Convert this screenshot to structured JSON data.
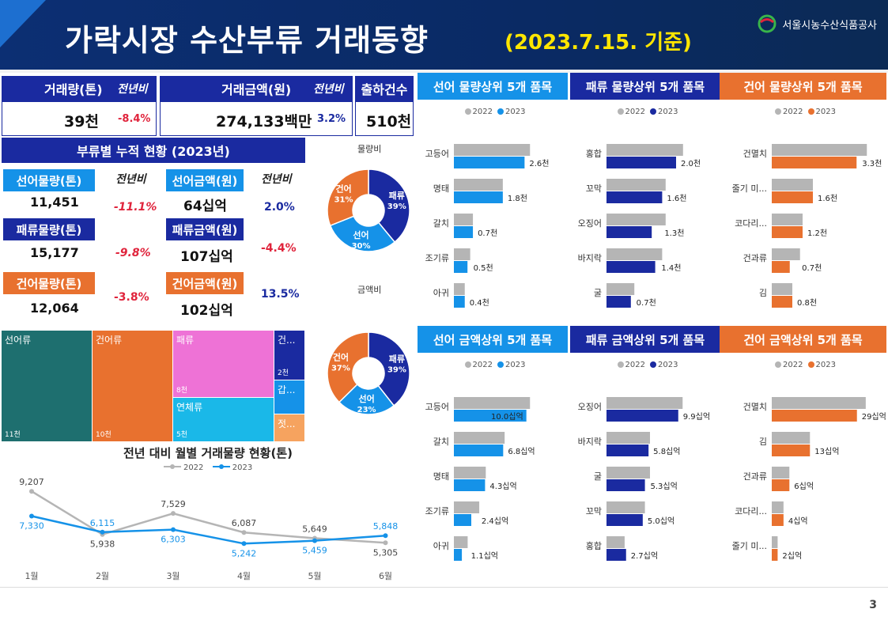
{
  "header": {
    "title": "가락시장 수산부류 거래동향",
    "date": "(2023.7.15. 기준)",
    "org": "서울시농수산식품공사"
  },
  "kpi": {
    "vol_label": "거래량(톤)",
    "yoy_label": "전년비",
    "vol_value": "39천",
    "vol_pct": "-8.4%",
    "amt_label": "거래금액(원)",
    "amt_yoy_label": "전년비",
    "amt_value": "274,133백만",
    "amt_pct": "3.2%",
    "cnt_label": "출하건수",
    "cnt_value": "510천"
  },
  "cum": {
    "title": "부류별 누적 현황 (2023년)",
    "yoy": "전년비",
    "rows": [
      {
        "vlabel": "선어물량(톤)",
        "vval": "11,451",
        "vpct": "-11.1%",
        "alabel": "선어금액(원)",
        "aval": "64십억",
        "apct": "2.0%"
      },
      {
        "vlabel": "패류물량(톤)",
        "vval": "15,177",
        "vpct": "-9.8%",
        "alabel": "패류금액(원)",
        "aval": "107십억",
        "apct": "-4.4%"
      },
      {
        "vlabel": "건어물량(톤)",
        "vval": "12,064",
        "vpct": "-3.8%",
        "alabel": "건어금액(원)",
        "aval": "102십억",
        "apct": "13.5%"
      }
    ]
  },
  "donut1": {
    "title": "물량비",
    "slices": [
      {
        "name": "패류",
        "pct": 39,
        "color": "#1a2aa0"
      },
      {
        "name": "선어",
        "pct": 30,
        "color": "#1592e8"
      },
      {
        "name": "건어",
        "pct": 31,
        "color": "#e8712f"
      }
    ]
  },
  "donut2": {
    "title": "금액비",
    "slices": [
      {
        "name": "패류",
        "pct": 39,
        "color": "#1a2aa0"
      },
      {
        "name": "선어",
        "pct": 23,
        "color": "#1592e8"
      },
      {
        "name": "건어",
        "pct": 37,
        "color": "#e8712f"
      }
    ]
  },
  "treemap": [
    {
      "name": "선어류",
      "value": "11천"
    },
    {
      "name": "건어류",
      "value": "10천"
    },
    {
      "name": "패류",
      "value": "8천"
    },
    {
      "name": "연체류",
      "value": "5천"
    },
    {
      "name": "건...",
      "value": "2천"
    },
    {
      "name": "갑...",
      "value": ""
    },
    {
      "name": "젓...",
      "value": ""
    }
  ],
  "chart_data": [
    {
      "type": "line",
      "title": "전년 대비 월별 거래물량 현황(톤)",
      "categories": [
        "1월",
        "2월",
        "3월",
        "4월",
        "5월",
        "6월"
      ],
      "series": [
        {
          "name": "2022",
          "color": "#b5b5b5",
          "values": [
            9207,
            5938,
            7529,
            6087,
            5649,
            5305
          ]
        },
        {
          "name": "2023",
          "color": "#1592e8",
          "values": [
            7330,
            6115,
            6303,
            5242,
            5459,
            5848
          ]
        }
      ],
      "labels_2022": [
        "9,207",
        "5,938",
        "7,529",
        "6,087",
        "5,649",
        "5,305"
      ],
      "labels_2023": [
        "7,330",
        "6,115",
        "6,303",
        "5,242",
        "5,459",
        "5,848"
      ]
    },
    {
      "type": "bar",
      "title": "선어 물량상위 5개 품목",
      "categories": [
        "고등어",
        "명태",
        "갈치",
        "조기류",
        "아귀"
      ],
      "series": [
        {
          "name": "2022",
          "values": [
            2.8,
            1.8,
            0.7,
            0.6,
            0.4
          ]
        },
        {
          "name": "2023",
          "values": [
            2.6,
            1.8,
            0.7,
            0.5,
            0.4
          ]
        }
      ],
      "labels": [
        "2.6천",
        "1.8천",
        "0.7천",
        "0.5천",
        "0.4천"
      ],
      "color": "#1592e8",
      "max": 3.2
    },
    {
      "type": "bar",
      "title": "패류 물량상위 5개 품목",
      "categories": [
        "홍합",
        "꼬막",
        "오징어",
        "바지락",
        "굴"
      ],
      "series": [
        {
          "name": "2022",
          "values": [
            2.2,
            1.7,
            1.7,
            1.6,
            0.8
          ]
        },
        {
          "name": "2023",
          "values": [
            2.0,
            1.6,
            1.3,
            1.4,
            0.7
          ]
        }
      ],
      "labels": [
        "2.0천",
        "1.6천",
        "1.3천",
        "1.4천",
        "0.7천"
      ],
      "color": "#1a2aa0",
      "max": 2.5
    },
    {
      "type": "bar",
      "title": "건어 물량상위 5개 품목",
      "categories": [
        "건멸치",
        "줄기 미...",
        "코다리...",
        "건과류",
        "김"
      ],
      "series": [
        {
          "name": "2022",
          "values": [
            3.7,
            1.6,
            1.2,
            1.1,
            0.8
          ]
        },
        {
          "name": "2023",
          "values": [
            3.3,
            1.6,
            1.2,
            0.7,
            0.8
          ]
        }
      ],
      "labels": [
        "3.3천",
        "1.6천",
        "1.2천",
        "0.7천",
        "0.8천"
      ],
      "color": "#e8712f",
      "max": 4.0
    },
    {
      "type": "bar",
      "title": "선어 금액상위 5개 품목",
      "categories": [
        "고등어",
        "갈치",
        "명태",
        "조기류",
        "아귀"
      ],
      "series": [
        {
          "name": "2022",
          "values": [
            10.5,
            7.0,
            4.4,
            3.5,
            1.9
          ]
        },
        {
          "name": "2023",
          "values": [
            10.0,
            6.8,
            4.3,
            2.4,
            1.1
          ]
        }
      ],
      "labels": [
        "10.0십억",
        "6.8십억",
        "4.3십억",
        "2.4십억",
        "1.1십억"
      ],
      "color": "#1592e8",
      "max": 12
    },
    {
      "type": "bar",
      "title": "패류 금액상위 5개 품목",
      "categories": [
        "오징어",
        "바지락",
        "굴",
        "꼬막",
        "홍합"
      ],
      "series": [
        {
          "name": "2022",
          "values": [
            10.5,
            6.0,
            6.0,
            5.3,
            2.5
          ]
        },
        {
          "name": "2023",
          "values": [
            9.9,
            5.8,
            5.3,
            5.0,
            2.7
          ]
        }
      ],
      "labels": [
        "9.9십억",
        "5.8십억",
        "5.3십억",
        "5.0십억",
        "2.7십억"
      ],
      "color": "#1a2aa0",
      "max": 12
    },
    {
      "type": "bar",
      "title": "건어 금액상위 5개 품목",
      "categories": [
        "건멸치",
        "김",
        "건과류",
        "코다리...",
        "줄기 미..."
      ],
      "series": [
        {
          "name": "2022",
          "values": [
            32,
            13,
            6,
            4,
            2
          ]
        },
        {
          "name": "2023",
          "values": [
            29,
            13,
            6,
            4,
            2
          ]
        }
      ],
      "labels": [
        "29십억",
        "13십억",
        "6십억",
        "4십억",
        "2십억"
      ],
      "color": "#e8712f",
      "max": 35
    }
  ],
  "legend_2022": "2022",
  "legend_2023": "2023",
  "page_number": "3"
}
